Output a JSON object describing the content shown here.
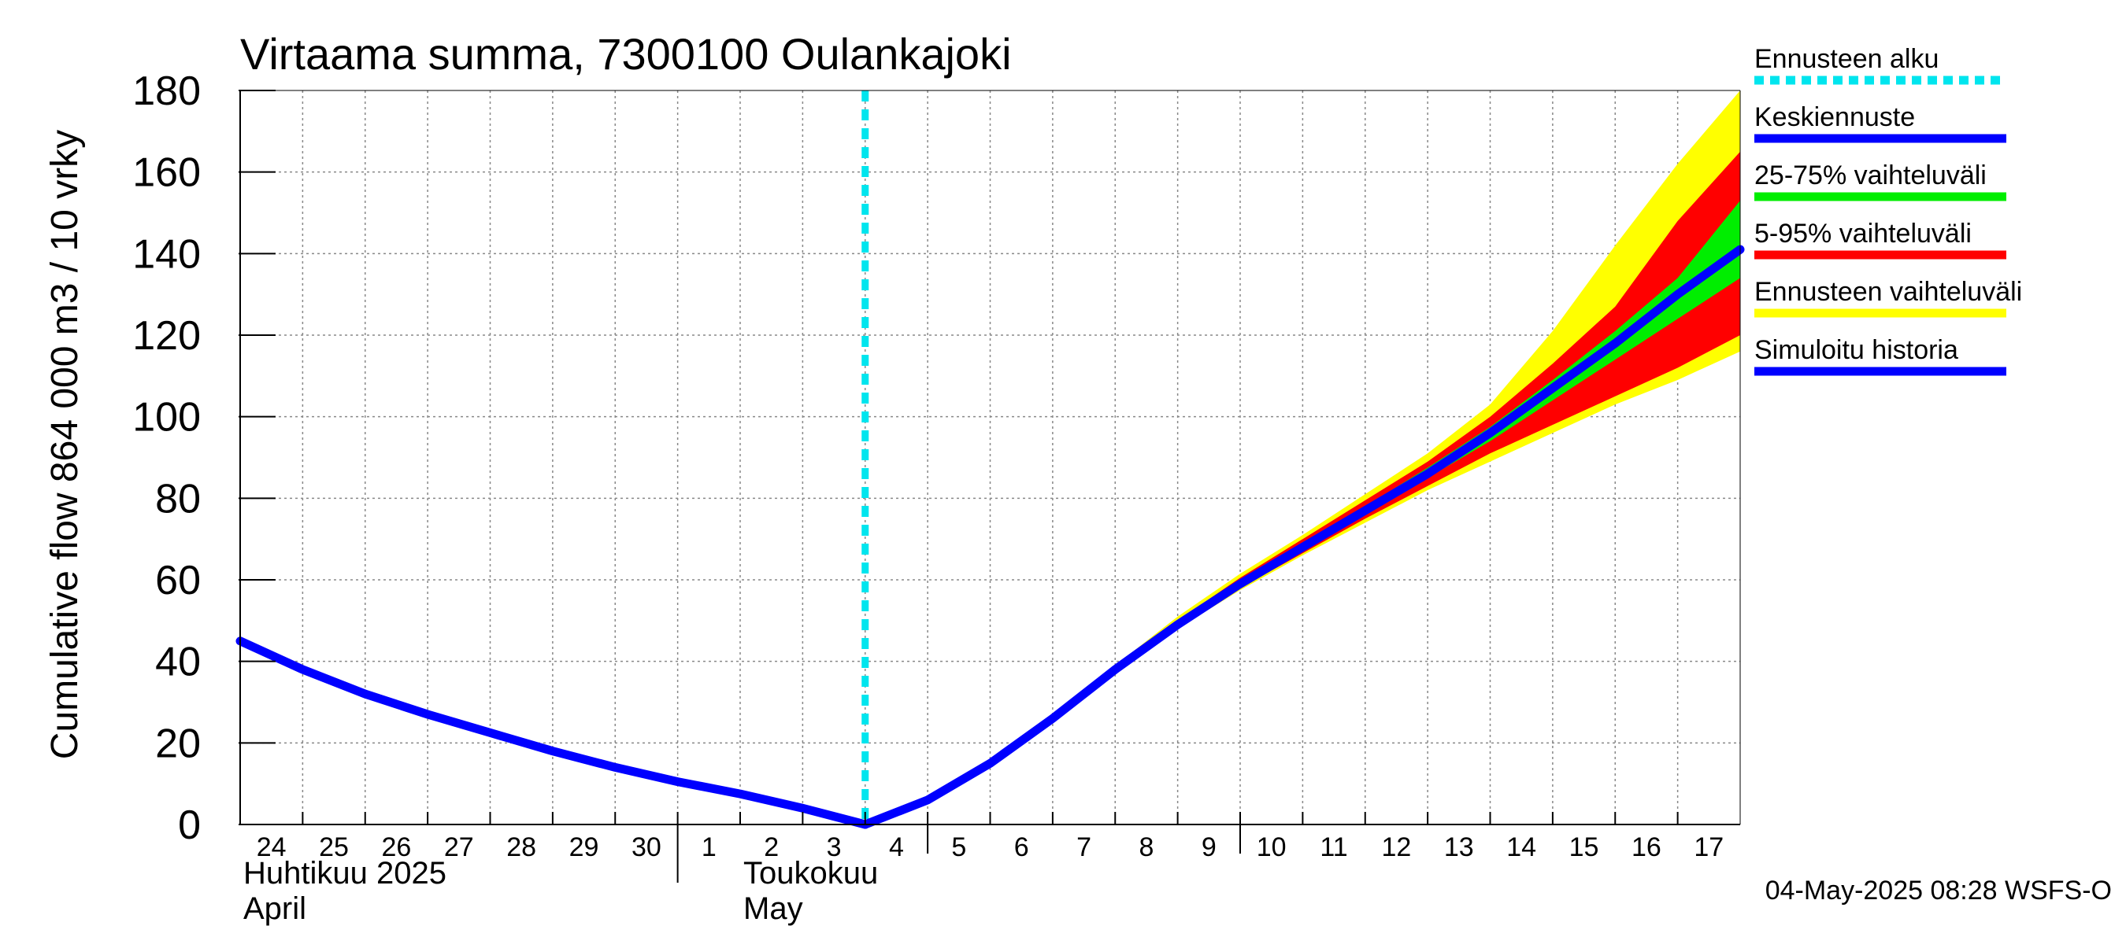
{
  "chart_data": {
    "type": "area",
    "title": "Virtaama summa, 7300100 Oulankajoki",
    "ylabel": "Cumulative flow    864 000 m3 / 10 vrky",
    "ylim": [
      0,
      180
    ],
    "yticks": [
      "0",
      "20",
      "40",
      "60",
      "80",
      "100",
      "120",
      "140",
      "160",
      "180"
    ],
    "grid": true,
    "xtick_labels": [
      "24",
      "25",
      "26",
      "27",
      "28",
      "29",
      "30",
      "1",
      "2",
      "3",
      "4",
      "5",
      "6",
      "7",
      "8",
      "9",
      "10",
      "11",
      "12",
      "13",
      "14",
      "15",
      "16",
      "17"
    ],
    "month_labels": [
      {
        "line1": "Huhtikuu  2025",
        "line2": "April"
      },
      {
        "line1": "Toukokuu",
        "line2": "May"
      }
    ],
    "x_range_days": [
      0,
      24
    ],
    "forecast_start_day": 10.0,
    "history": {
      "name": "Simuloitu historia",
      "x": [
        0,
        1,
        2,
        3,
        4,
        5,
        6,
        7,
        8,
        9,
        10
      ],
      "y": [
        45,
        38,
        32,
        27,
        22.5,
        18,
        14,
        10.5,
        7.5,
        4,
        0
      ]
    },
    "forecast_x": [
      10,
      11,
      12,
      13,
      14,
      15,
      16,
      17,
      18,
      19,
      20,
      21,
      22,
      23,
      24
    ],
    "median": {
      "name": "Keskiennuste",
      "y": [
        0,
        6,
        15,
        26,
        38,
        49,
        59,
        68,
        77,
        86,
        96,
        107,
        118,
        130,
        141
      ]
    },
    "band_25_75": {
      "name": "25-75% vaihteluväli",
      "lower": [
        0,
        6,
        15,
        26,
        38,
        49,
        58.5,
        67,
        76,
        85,
        94,
        104,
        114,
        124,
        134
      ],
      "upper": [
        0,
        6,
        15,
        26,
        38,
        49.5,
        59.5,
        69,
        78,
        87.5,
        97.5,
        109,
        121,
        134,
        153
      ]
    },
    "band_5_95": {
      "name": "5-95% vaihteluväli",
      "lower": [
        0,
        6,
        15,
        26,
        37.5,
        48.5,
        58,
        66.5,
        75,
        83,
        91,
        98,
        105,
        112,
        120
      ],
      "upper": [
        0,
        6,
        15,
        26,
        38.5,
        50,
        60.5,
        70,
        79.5,
        89,
        100,
        113,
        127,
        148,
        165
      ]
    },
    "band_full": {
      "name": "Ennusteen vaihteluväli",
      "lower": [
        0,
        6,
        15,
        26,
        37,
        48,
        57.5,
        66,
        74,
        82,
        89,
        96,
        103,
        109,
        116
      ],
      "upper": [
        0,
        6,
        15,
        26,
        39,
        51,
        61.5,
        71,
        81,
        91,
        103,
        121,
        142,
        162,
        180
      ]
    },
    "colors": {
      "history": "#0000ff",
      "median": "#0000ff",
      "band_25_75": "#00ee00",
      "band_5_95": "#ff0000",
      "band_full": "#ffff00",
      "forecast_start": "#00e5ee",
      "grid": "#888888"
    },
    "legend": {
      "placement": "right",
      "entries": [
        {
          "label": "Ennusteen alku",
          "color": "#00e5ee",
          "style": "dotted"
        },
        {
          "label": "Keskiennuste",
          "color": "#0000ff",
          "style": "solid"
        },
        {
          "label": "25-75% vaihteluväli",
          "color": "#00ee00",
          "style": "solid"
        },
        {
          "label": "5-95% vaihteluväli",
          "color": "#ff0000",
          "style": "solid"
        },
        {
          "label": "Ennusteen vaihteluväli",
          "color": "#ffff00",
          "style": "solid"
        },
        {
          "label": "Simuloitu historia",
          "color": "#0000ff",
          "style": "solid"
        }
      ]
    },
    "footer": "04-May-2025 08:28 WSFS-O"
  }
}
